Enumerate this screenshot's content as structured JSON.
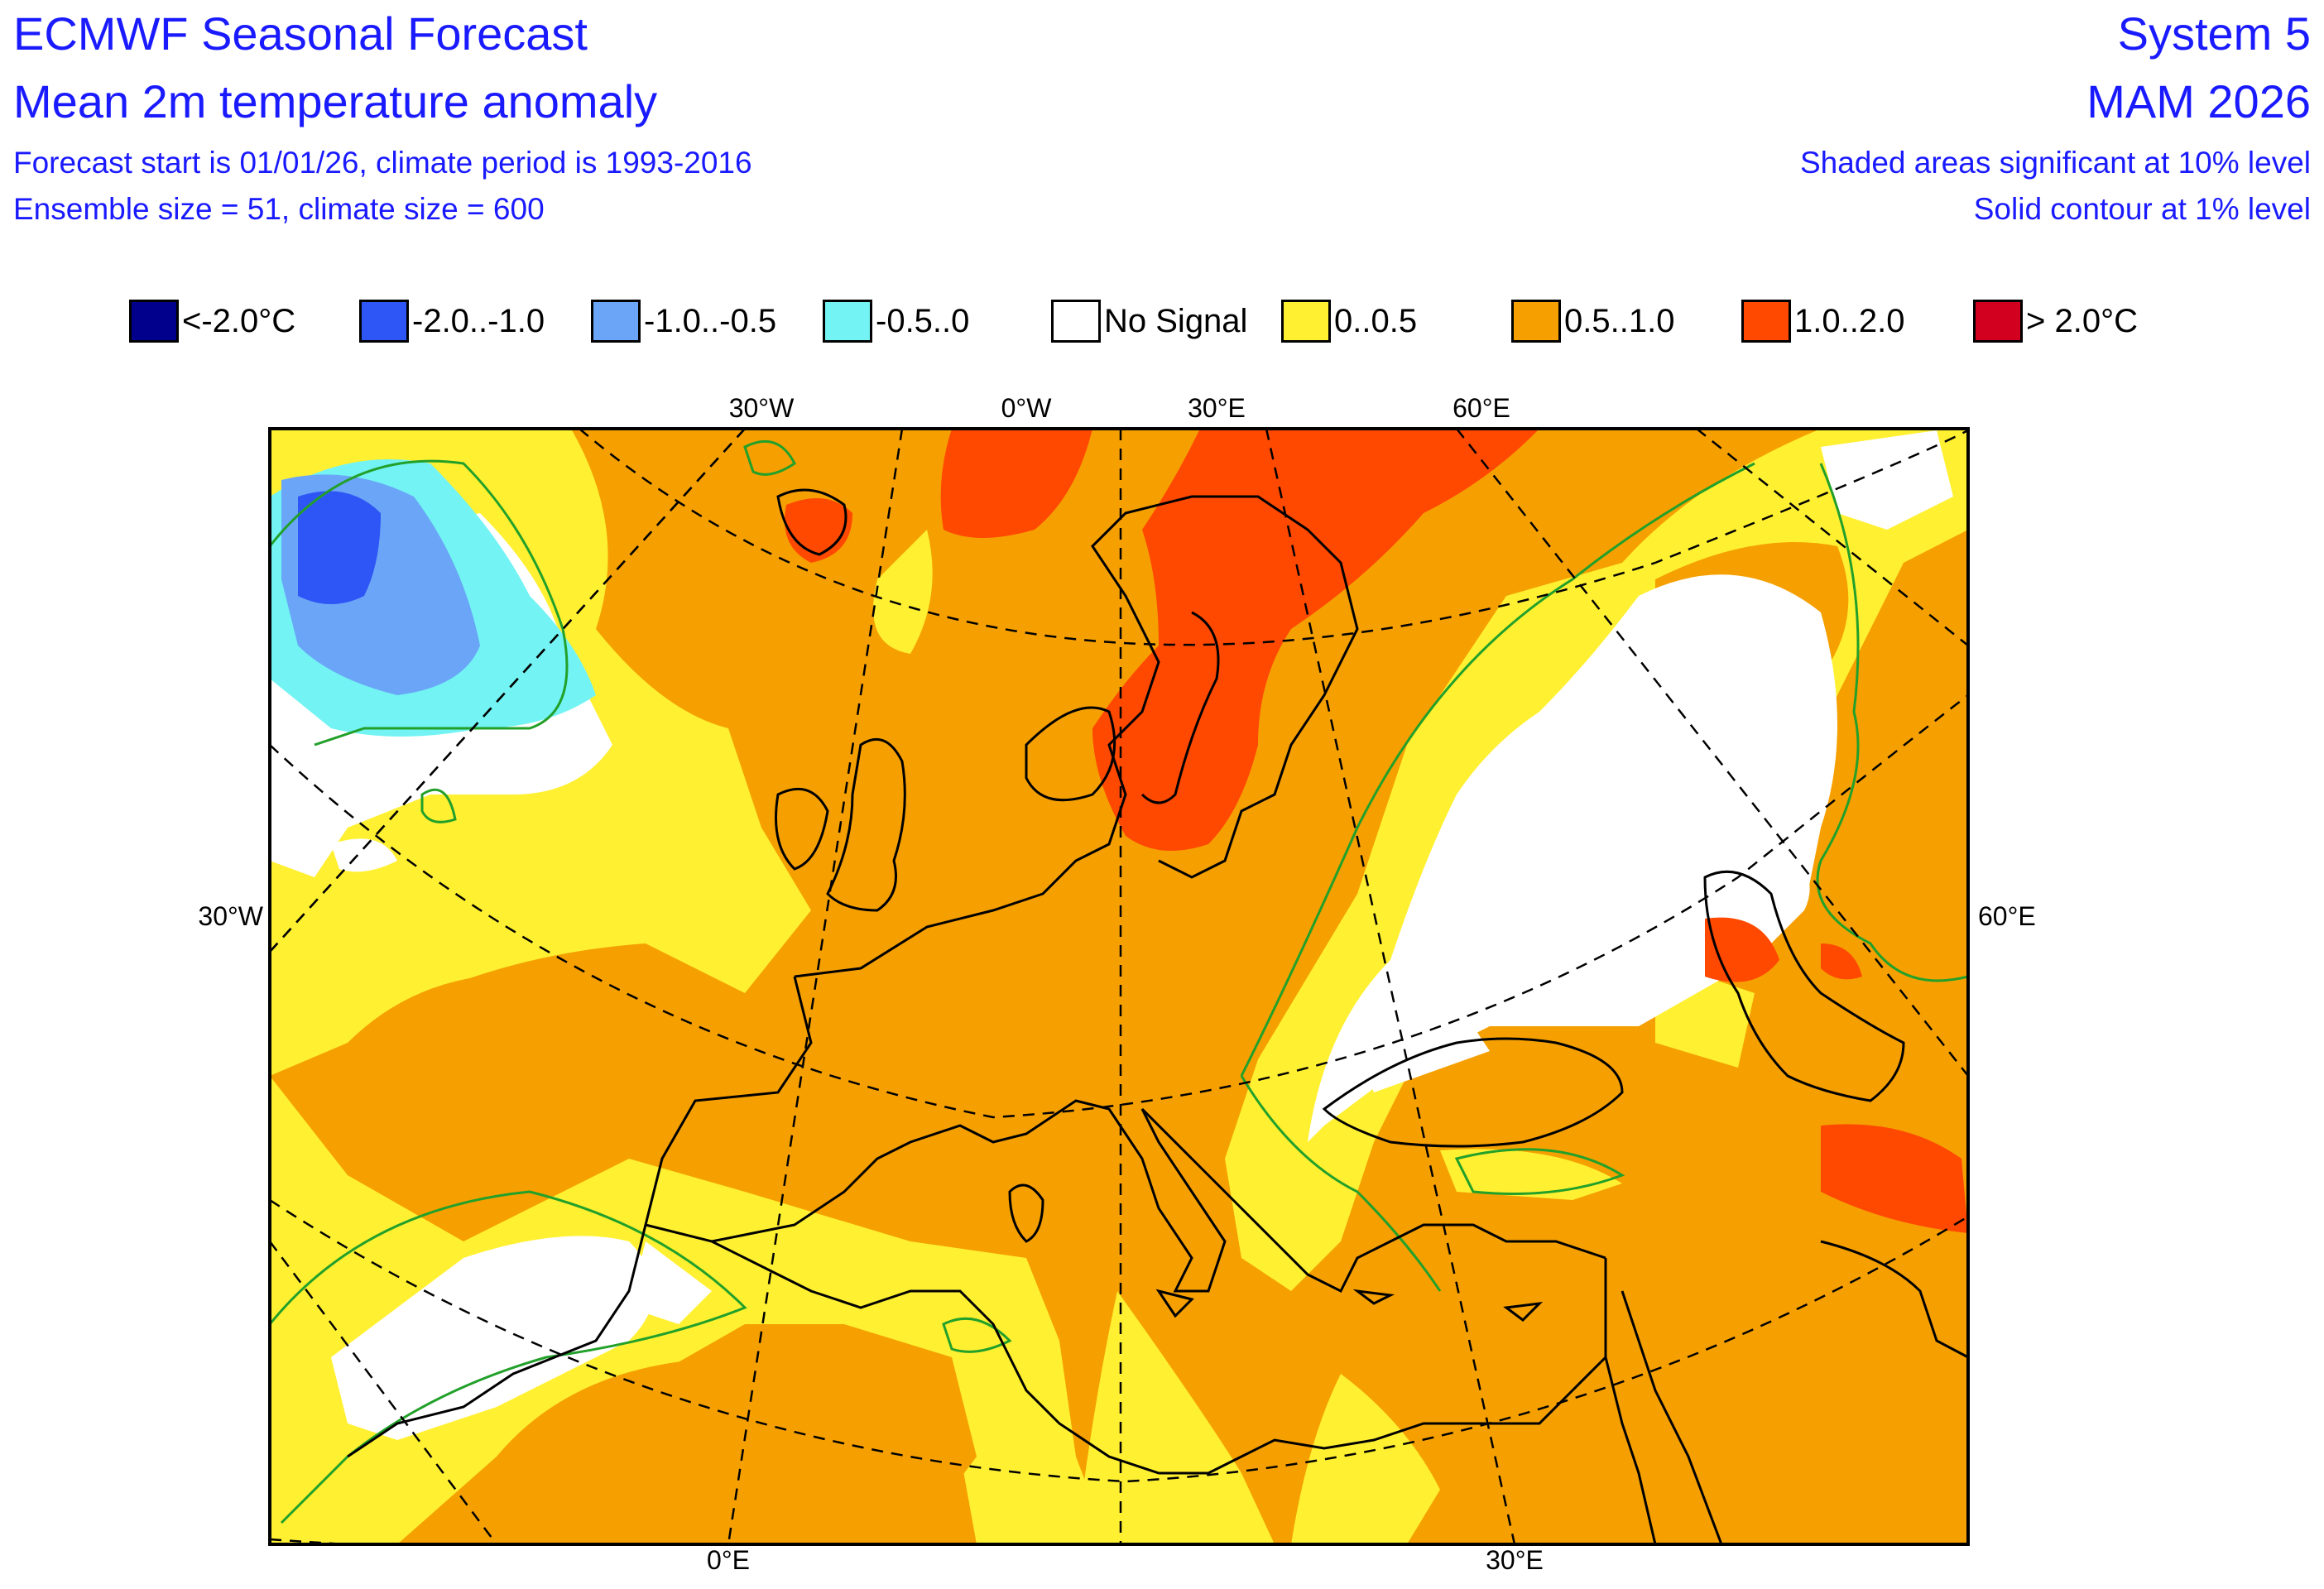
{
  "header": {
    "title": "ECMWF Seasonal Forecast",
    "subtitle": "Mean 2m temperature anomaly",
    "line3": "Forecast start is 01/01/26, climate period is 1993-2016",
    "line4": "Ensemble size = 51, climate size = 600",
    "system": "System 5",
    "season": "MAM 2026",
    "significance": "Shaded areas significant at 10% level",
    "contour": "Solid contour at 1% level"
  },
  "legend": [
    {
      "label": "<-2.0°C",
      "color": "#00008c"
    },
    {
      "label": "-2.0..-1.0",
      "color": "#2e55f5"
    },
    {
      "label": "-1.0..-0.5",
      "color": "#6aa5f7"
    },
    {
      "label": "-0.5..0",
      "color": "#73f3f3"
    },
    {
      "label": "No Signal",
      "color": "#ffffff"
    },
    {
      "label": "0..0.5",
      "color": "#fff032"
    },
    {
      "label": "0.5..1.0",
      "color": "#f5a000"
    },
    {
      "label": "1.0..2.0",
      "color": "#ff4800"
    },
    {
      "label": "> 2.0°C",
      "color": "#d2001e"
    }
  ],
  "axes": {
    "top": [
      "30°W",
      "0°W",
      "30°E",
      "60°E"
    ],
    "left": "30°W",
    "right": "60°E",
    "bottom": [
      "0°E",
      "30°E"
    ]
  }
}
